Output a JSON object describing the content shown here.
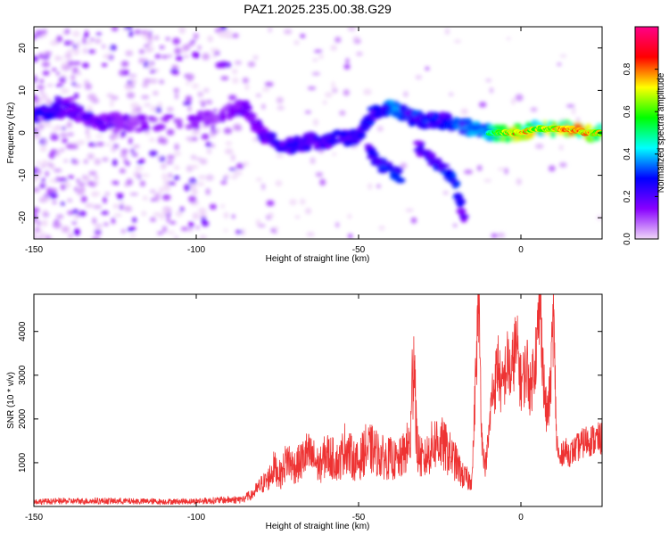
{
  "figure": {
    "title": "PAZ1.2025.235.00.38.G29"
  },
  "chart_data": [
    {
      "type": "heatmap",
      "xlabel": "Height of straight line (km)",
      "ylabel": "Frequency (Hz)",
      "xlim": [
        -150,
        25
      ],
      "ylim": [
        -25,
        25
      ],
      "xticks": [
        -150,
        -100,
        -50,
        0
      ],
      "yticks": [
        -20,
        -10,
        0,
        10,
        20
      ],
      "colorbar": {
        "label": "Normalized spectral amplitude",
        "range": [
          0,
          1
        ],
        "ticks": [
          0.0,
          0.2,
          0.4,
          0.6,
          0.8
        ],
        "colormap": "hsv-reversed",
        "colors": [
          "#f0d8f8",
          "#8800ff",
          "#0000ff",
          "#00ffff",
          "#00ff00",
          "#ffff00",
          "#ff0000",
          "#ff0088"
        ]
      },
      "ridge_main": {
        "x": [
          -150,
          -145,
          -140,
          -135,
          -130,
          -125,
          -120,
          -100,
          -90,
          -85,
          -80,
          -75,
          -70,
          -65,
          -60,
          -55,
          -50,
          -45,
          -40,
          -35,
          -30,
          -25,
          -20,
          -15,
          -10,
          -5,
          0,
          5,
          10,
          15,
          20,
          25
        ],
        "y": [
          4,
          5,
          6,
          4,
          2,
          3,
          2,
          3,
          5,
          6,
          0,
          -3,
          -3,
          -2,
          -2,
          -1,
          -1,
          5,
          6,
          4,
          3,
          3,
          2,
          1,
          0,
          0,
          0,
          1,
          1,
          1,
          0,
          0
        ],
        "amplitude": [
          0.25,
          0.3,
          0.25,
          0.2,
          0.2,
          0.2,
          0.15,
          0.15,
          0.15,
          0.2,
          0.2,
          0.3,
          0.3,
          0.25,
          0.3,
          0.3,
          0.3,
          0.3,
          0.4,
          0.35,
          0.35,
          0.3,
          0.35,
          0.4,
          0.5,
          0.7,
          0.85,
          0.7,
          0.75,
          0.85,
          0.8,
          0.75
        ]
      },
      "ridge_branch_1": {
        "x": [
          -47,
          -44,
          -40,
          -37
        ],
        "y": [
          -4,
          -7,
          -9,
          -10
        ],
        "amplitude": [
          0.3,
          0.35,
          0.35,
          0.3
        ]
      },
      "ridge_branch_2": {
        "x": [
          -32,
          -28,
          -24,
          -20,
          -17
        ],
        "y": [
          -3,
          -6,
          -8,
          -12,
          -22
        ],
        "amplitude": [
          0.25,
          0.3,
          0.35,
          0.35,
          0.2
        ]
      }
    },
    {
      "type": "line",
      "xlabel": "Height of straight line (km)",
      "ylabel": "SNR (10 * v/v)",
      "xlim": [
        -150,
        25
      ],
      "ylim": [
        0,
        4850
      ],
      "xticks": [
        -150,
        -100,
        -50,
        0
      ],
      "yticks": [
        1000,
        2000,
        3000,
        4000
      ],
      "line_color": "#ee3333",
      "series": [
        {
          "x": [
            -150,
            -140,
            -130,
            -120,
            -110,
            -100,
            -90,
            -85,
            -83,
            -80,
            -78,
            -76,
            -74,
            -72,
            -70,
            -68,
            -66,
            -64,
            -62,
            -60,
            -58,
            -56,
            -54,
            -52,
            -50,
            -48,
            -46,
            -44,
            -42,
            -40,
            -38,
            -36,
            -34,
            -33,
            -32,
            -30,
            -28,
            -26,
            -24,
            -22,
            -20,
            -18,
            -16,
            -15,
            -14,
            -13,
            -12,
            -11,
            -10,
            -9,
            -8,
            -7,
            -6,
            -5,
            -4,
            -3,
            -2,
            -1,
            0,
            1,
            2,
            3,
            4,
            5,
            6,
            7,
            8,
            9,
            10,
            11,
            12,
            13,
            15,
            20,
            25
          ],
          "y": [
            150,
            160,
            170,
            160,
            150,
            160,
            200,
            220,
            250,
            500,
            600,
            900,
            700,
            1100,
            900,
            1000,
            1200,
            1100,
            900,
            1200,
            1100,
            1000,
            1400,
            1100,
            1000,
            1300,
            1300,
            1200,
            1100,
            1100,
            1000,
            1200,
            1500,
            3900,
            1300,
            1000,
            1300,
            1500,
            1400,
            1200,
            1000,
            700,
            600,
            700,
            2800,
            4800,
            1500,
            900,
            1500,
            2500,
            2800,
            3300,
            2600,
            3000,
            3300,
            2900,
            3600,
            3500,
            2800,
            3000,
            3200,
            2600,
            3300,
            3700,
            4800,
            2800,
            2000,
            2600,
            4400,
            1500,
            1000,
            1300,
            1200,
            1500,
            1550
          ]
        }
      ]
    }
  ]
}
